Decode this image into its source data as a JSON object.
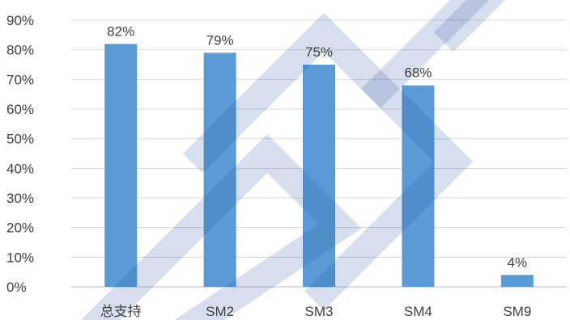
{
  "chart_data": {
    "type": "bar",
    "categories": [
      "总支持",
      "SM2",
      "SM3",
      "SM4",
      "SM9"
    ],
    "values": [
      82,
      79,
      75,
      68,
      4
    ],
    "data_labels": [
      "82%",
      "79%",
      "75%",
      "68%",
      "4%"
    ],
    "y_ticks": [
      "0%",
      "10%",
      "20%",
      "30%",
      "40%",
      "50%",
      "60%",
      "70%",
      "80%",
      "90%"
    ],
    "ylim": [
      0,
      90
    ],
    "y_unit": "%",
    "title": "",
    "xlabel": "",
    "ylabel": "",
    "grid": true,
    "legend": "none",
    "bar_color": "#5b9bd5"
  }
}
